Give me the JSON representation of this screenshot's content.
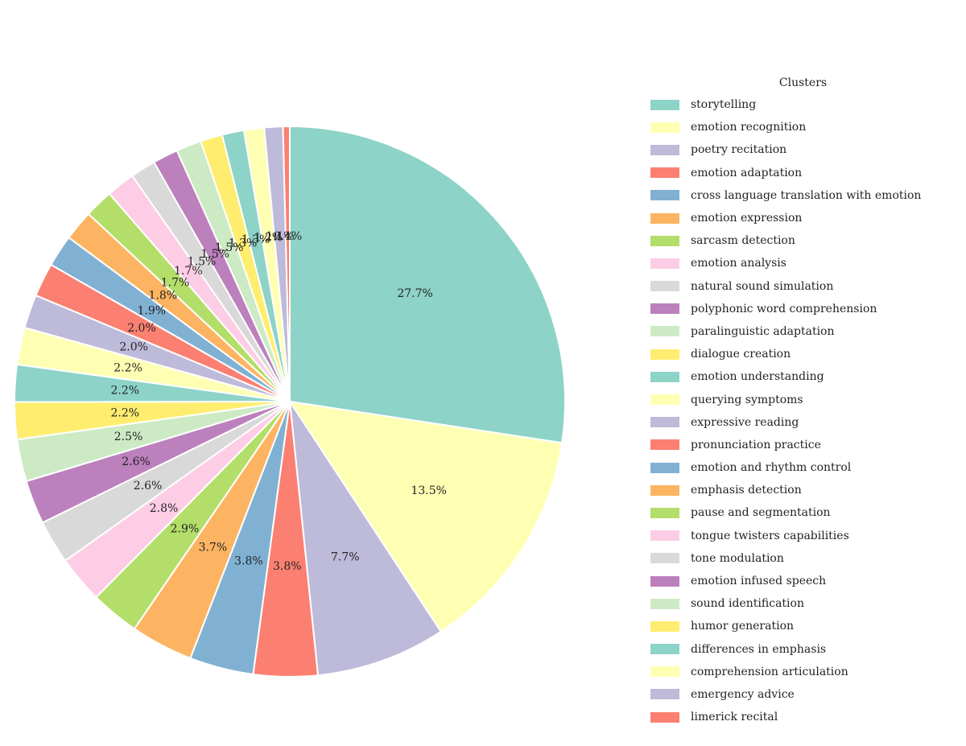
{
  "chart_data": {
    "type": "pie",
    "legend_title": "Clusters",
    "legend_position": "right",
    "start": "top, clockwise",
    "slices": [
      {
        "label": "storytelling",
        "value": 27.7,
        "pct_label": "27.7%",
        "color": "#8dd3c7"
      },
      {
        "label": "emotion recognition",
        "value": 13.5,
        "pct_label": "13.5%",
        "color": "#ffffb3"
      },
      {
        "label": "poetry recitation",
        "value": 7.7,
        "pct_label": "7.7%",
        "color": "#bebada"
      },
      {
        "label": "emotion adaptation",
        "value": 3.8,
        "pct_label": "3.8%",
        "color": "#fb8072"
      },
      {
        "label": "cross language translation with emotion",
        "value": 3.8,
        "pct_label": "3.8%",
        "color": "#80b1d3"
      },
      {
        "label": "emotion expression",
        "value": 3.7,
        "pct_label": "3.7%",
        "color": "#fdb462"
      },
      {
        "label": "sarcasm detection",
        "value": 2.9,
        "pct_label": "2.9%",
        "color": "#b3de69"
      },
      {
        "label": "emotion analysis",
        "value": 2.8,
        "pct_label": "2.8%",
        "color": "#fccde5"
      },
      {
        "label": "natural sound simulation",
        "value": 2.6,
        "pct_label": "2.6%",
        "color": "#d9d9d9"
      },
      {
        "label": "polyphonic word comprehension",
        "value": 2.6,
        "pct_label": "2.6%",
        "color": "#bc80bd"
      },
      {
        "label": "paralinguistic adaptation",
        "value": 2.5,
        "pct_label": "2.5%",
        "color": "#ccebc5"
      },
      {
        "label": "dialogue creation",
        "value": 2.2,
        "pct_label": "2.2%",
        "color": "#ffed6f"
      },
      {
        "label": "emotion understanding",
        "value": 2.2,
        "pct_label": "2.2%",
        "color": "#8dd3c7"
      },
      {
        "label": "querying symptoms",
        "value": 2.2,
        "pct_label": "2.2%",
        "color": "#ffffb3"
      },
      {
        "label": "expressive reading",
        "value": 2.0,
        "pct_label": "2.0%",
        "color": "#bebada"
      },
      {
        "label": "pronunciation practice",
        "value": 2.0,
        "pct_label": "2.0%",
        "color": "#fb8072"
      },
      {
        "label": "emotion and rhythm control",
        "value": 1.9,
        "pct_label": "1.9%",
        "color": "#80b1d3"
      },
      {
        "label": "emphasis detection",
        "value": 1.8,
        "pct_label": "1.8%",
        "color": "#fdb462"
      },
      {
        "label": "pause and segmentation",
        "value": 1.7,
        "pct_label": "1.7%",
        "color": "#b3de69"
      },
      {
        "label": "tongue twisters capabilities",
        "value": 1.7,
        "pct_label": "1.7%",
        "color": "#fccde5"
      },
      {
        "label": "tone modulation",
        "value": 1.5,
        "pct_label": "1.5%",
        "color": "#d9d9d9"
      },
      {
        "label": "emotion infused speech",
        "value": 1.5,
        "pct_label": "1.5%",
        "color": "#bc80bd"
      },
      {
        "label": "sound identification",
        "value": 1.5,
        "pct_label": "1.5%",
        "color": "#ccebc5"
      },
      {
        "label": "humor generation",
        "value": 1.3,
        "pct_label": "1.3%",
        "color": "#ffed6f"
      },
      {
        "label": "differences in emphasis",
        "value": 1.3,
        "pct_label": "1.3%",
        "color": "#8dd3c7"
      },
      {
        "label": "comprehension articulation",
        "value": 1.2,
        "pct_label": "1.2%",
        "color": "#ffffb3"
      },
      {
        "label": "emergency advice",
        "value": 1.1,
        "pct_label": "1.1%",
        "color": "#bebada"
      },
      {
        "label": "limerick recital",
        "value": 0.4,
        "pct_label": "0.4%",
        "color": "#fb8072"
      }
    ]
  }
}
